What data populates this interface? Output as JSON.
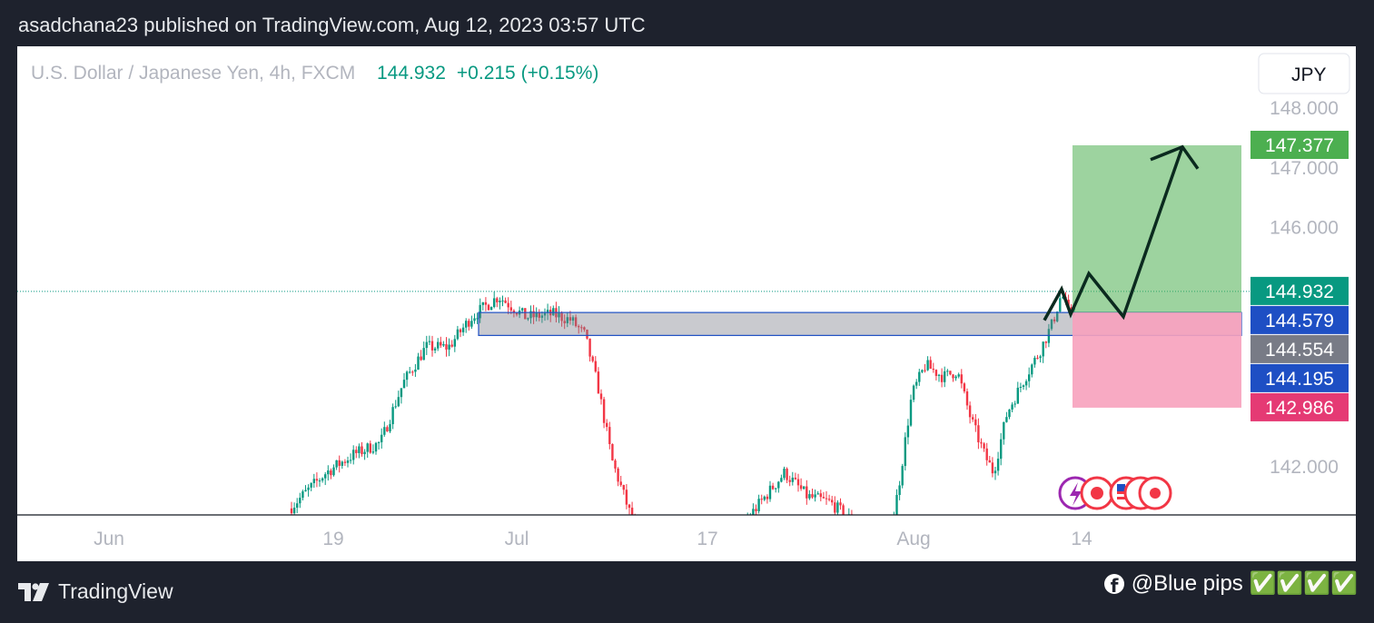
{
  "header": {
    "published_line": "asadchana23 published on TradingView.com, Aug 12, 2023 03:57 UTC"
  },
  "chart_data": {
    "type": "candlestick",
    "symbol_title": "U.S. Dollar / Japanese Yen, 4h, FXCM",
    "last_price": "144.932",
    "change": "+0.215 (+0.15%)",
    "currency": "JPY",
    "y_range": [
      141.25,
      148.3
    ],
    "y_ticks": [
      "148.000",
      "147.000",
      "146.000",
      "142.000"
    ],
    "x_ticks": [
      "Jun",
      "19",
      "Jul",
      "17",
      "Aug",
      "14"
    ],
    "price_labels": [
      {
        "value": "147.377",
        "color": "#4caf50"
      },
      {
        "value": "144.932",
        "color": "#089981"
      },
      {
        "value": "144.579",
        "color": "#1e4fc4"
      },
      {
        "value": "144.554",
        "color": "#787b86"
      },
      {
        "value": "144.195",
        "color": "#1e4fc4"
      },
      {
        "value": "142.986",
        "color": "#e53a74"
      }
    ],
    "zone": {
      "top": 144.579,
      "bottom": 144.195
    },
    "position": {
      "entry": 144.58,
      "target": 147.377,
      "stop": 142.986
    },
    "up_color": "#089981",
    "down_color": "#f23645"
  },
  "footer": {
    "brand": "TradingView",
    "credit": "@Blue pips ✅✅✅✅"
  }
}
